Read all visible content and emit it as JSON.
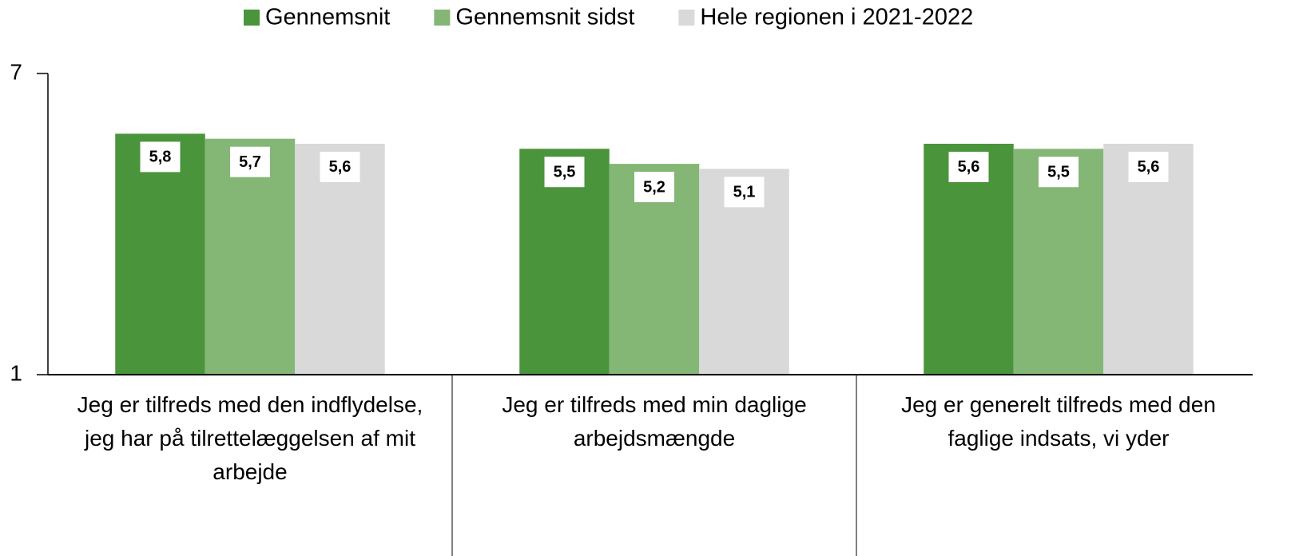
{
  "chart_data": {
    "type": "bar",
    "categories": [
      "Jeg er tilfreds med den indflydelse, jeg har på tilrettelæggelsen af mit arbejde",
      "Jeg er tilfreds med min daglige arbejdsmængde",
      "Jeg er generelt tilfreds med den faglige indsats, vi yder"
    ],
    "series": [
      {
        "name": "Gennemsnit",
        "color": "#4a943c",
        "values": [
          5.8,
          5.5,
          5.6
        ],
        "value_labels": [
          "5,8",
          "5,5",
          "5,6"
        ]
      },
      {
        "name": "Gennemsnit sidst",
        "color": "#84b676",
        "values": [
          5.7,
          5.2,
          5.5
        ],
        "value_labels": [
          "5,7",
          "5,2",
          "5,5"
        ]
      },
      {
        "name": "Hele regionen i 2021-2022",
        "color": "#d9d9d9",
        "values": [
          5.6,
          5.1,
          5.6
        ],
        "value_labels": [
          "5,6",
          "5,1",
          "5,6"
        ]
      }
    ],
    "ylim": [
      1,
      7
    ],
    "yticks": [
      1,
      7
    ],
    "legend": "top"
  }
}
